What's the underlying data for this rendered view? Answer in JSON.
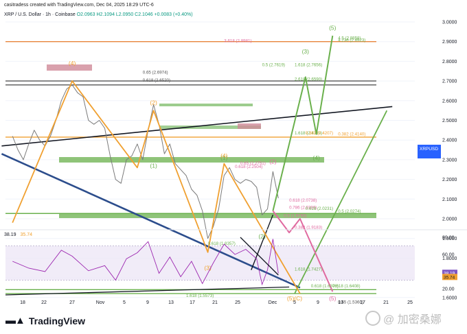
{
  "header": {
    "created": "casitradess created with TradingView.com, Dec 04, 2025 18:29 UTC-6",
    "symbol": "XRP / U.S. Dollar · 1h · Coinbase",
    "ohlc": "O2.0963 H2.1094 L2.0950 C2.1046 +0.0083 (+0.40%)"
  },
  "rsi_header": {
    "value": "38.19",
    "ma": "35.74"
  },
  "price_tag": {
    "symbol": "XRPUSD",
    "value": "2.1046",
    "timer": "30:10",
    "color": "#2962ff"
  },
  "colors": {
    "orange": "#f0a030",
    "green": "#6ab04c",
    "pink": "#e06aa0",
    "navy": "#2c4d8c",
    "black": "#131722",
    "rsi": "#9c27b0"
  },
  "chart_data": {
    "type": "line",
    "instrument": "XRP / U.S. Dollar",
    "timeframe": "1h",
    "y_ticks": [
      3.0,
      2.9,
      2.8,
      2.7,
      2.6,
      2.5,
      2.4,
      2.3,
      2.2,
      2.1,
      2.0,
      1.9,
      1.8,
      1.7,
      1.6
    ],
    "y_tick_labels": [
      "3.0000",
      "2.9000",
      "2.8000",
      "2.7000",
      "2.6000",
      "2.5000",
      "2.4000",
      "2.3000",
      "2.2000",
      "2.1000",
      "2.0000",
      "1.9000",
      "1.8000",
      "1.7000",
      "1.6000"
    ],
    "x_ticks": [
      "18",
      "22",
      "27",
      "Nov",
      "5",
      "9",
      "13",
      "17",
      "21",
      "25",
      "Dec",
      "5",
      "9",
      "13",
      "17",
      "21",
      "25"
    ],
    "price_path": [
      {
        "d": "Oct 16",
        "p": 2.42
      },
      {
        "d": "Oct 17",
        "p": 2.35
      },
      {
        "d": "Oct 18",
        "p": 2.3
      },
      {
        "d": "Oct 19",
        "p": 2.38
      },
      {
        "d": "Oct 20",
        "p": 2.45
      },
      {
        "d": "Oct 21",
        "p": 2.4
      },
      {
        "d": "Oct 22",
        "p": 2.37
      },
      {
        "d": "Oct 23",
        "p": 2.42
      },
      {
        "d": "Oct 24",
        "p": 2.5
      },
      {
        "d": "Oct 25",
        "p": 2.6
      },
      {
        "d": "Oct 26",
        "p": 2.66
      },
      {
        "d": "Oct 27",
        "p": 2.68
      },
      {
        "d": "Oct 28",
        "p": 2.64
      },
      {
        "d": "Oct 29",
        "p": 2.62
      },
      {
        "d": "Oct 30",
        "p": 2.5
      },
      {
        "d": "Oct 31",
        "p": 2.48
      },
      {
        "d": "Nov 1",
        "p": 2.5
      },
      {
        "d": "Nov 2",
        "p": 2.46
      },
      {
        "d": "Nov 3",
        "p": 2.32
      },
      {
        "d": "Nov 4",
        "p": 2.2
      },
      {
        "d": "Nov 5",
        "p": 2.18
      },
      {
        "d": "Nov 6",
        "p": 2.3
      },
      {
        "d": "Nov 7",
        "p": 2.32
      },
      {
        "d": "Nov 8",
        "p": 2.38
      },
      {
        "d": "Nov 9",
        "p": 2.3
      },
      {
        "d": "Nov 10",
        "p": 2.45
      },
      {
        "d": "Nov 11",
        "p": 2.58
      },
      {
        "d": "Nov 12",
        "p": 2.48
      },
      {
        "d": "Nov 13",
        "p": 2.33
      },
      {
        "d": "Nov 14",
        "p": 2.38
      },
      {
        "d": "Nov 15",
        "p": 2.28
      },
      {
        "d": "Nov 16",
        "p": 2.25
      },
      {
        "d": "Nov 17",
        "p": 2.22
      },
      {
        "d": "Nov 18",
        "p": 2.15
      },
      {
        "d": "Nov 19",
        "p": 2.12
      },
      {
        "d": "Nov 20",
        "p": 2.04
      },
      {
        "d": "Nov 21",
        "p": 1.9
      },
      {
        "d": "Nov 22",
        "p": 1.96
      },
      {
        "d": "Nov 23",
        "p": 2.05
      },
      {
        "d": "Nov 24",
        "p": 2.22
      },
      {
        "d": "Nov 25",
        "p": 2.26
      },
      {
        "d": "Nov 26",
        "p": 2.2
      },
      {
        "d": "Nov 27",
        "p": 2.18
      },
      {
        "d": "Nov 28",
        "p": 2.2
      },
      {
        "d": "Nov 29",
        "p": 2.19
      },
      {
        "d": "Nov 30",
        "p": 2.16
      },
      {
        "d": "Dec 1",
        "p": 2.02
      },
      {
        "d": "Dec 2",
        "p": 2.05
      },
      {
        "d": "Dec 3",
        "p": 2.24
      },
      {
        "d": "Dec 4",
        "p": 2.1046
      }
    ],
    "rsi": {
      "value": 38.19,
      "ma": 35.74,
      "ylim": [
        20,
        80
      ],
      "y_tick_labels": [
        "80.00",
        "60.00",
        "40.00",
        "20.00"
      ],
      "y_ticks": [
        80,
        60,
        40,
        20
      ],
      "series": [
        {
          "d": "Oct 16",
          "v": 52
        },
        {
          "d": "Oct 19",
          "v": 44
        },
        {
          "d": "Oct 22",
          "v": 40
        },
        {
          "d": "Oct 25",
          "v": 65
        },
        {
          "d": "Oct 27",
          "v": 58
        },
        {
          "d": "Oct 30",
          "v": 41
        },
        {
          "d": "Nov 2",
          "v": 47
        },
        {
          "d": "Nov 4",
          "v": 30
        },
        {
          "d": "Nov 6",
          "v": 55
        },
        {
          "d": "Nov 8",
          "v": 62
        },
        {
          "d": "Nov 10",
          "v": 75
        },
        {
          "d": "Nov 12",
          "v": 38
        },
        {
          "d": "Nov 14",
          "v": 57
        },
        {
          "d": "Nov 16",
          "v": 34
        },
        {
          "d": "Nov 18",
          "v": 52
        },
        {
          "d": "Nov 20",
          "v": 26
        },
        {
          "d": "Nov 22",
          "v": 50
        },
        {
          "d": "Nov 24",
          "v": 72
        },
        {
          "d": "Nov 26",
          "v": 60
        },
        {
          "d": "Nov 28",
          "v": 66
        },
        {
          "d": "Nov 30",
          "v": 55
        },
        {
          "d": "Dec 1",
          "v": 25
        },
        {
          "d": "Dec 2",
          "v": 42
        },
        {
          "d": "Dec 3",
          "v": 78
        },
        {
          "d": "Dec 4",
          "v": 38
        }
      ]
    },
    "horizontal_levels": [
      {
        "price": 2.9,
        "color": "#e8843a",
        "label": ""
      },
      {
        "price": 2.7,
        "color": "#555555",
        "label": ""
      },
      {
        "price": 2.68,
        "color": "#555555",
        "label": ""
      },
      {
        "price": 2.415,
        "color": "#f0a030",
        "label": "0.382 (2.4140)"
      },
      {
        "price": 2.027,
        "color": "#6ab04c",
        "label": "0.5 (2.0274)"
      },
      {
        "price": 1.64,
        "color": "#6ab04c",
        "label": "0.618 (1.6408)"
      },
      {
        "price": 1.62,
        "color": "#6ab04c",
        "label": ""
      }
    ],
    "fib_labels": [
      {
        "d": "Nov 24",
        "p": 2.897,
        "text": "3.618 (2.8981)",
        "color": "#e06aa0"
      },
      {
        "d": "Dec 15",
        "p": 2.9,
        "text": "4.236 (2.8923)",
        "color": "#6ab04c"
      },
      {
        "d": "Dec 15",
        "p": 2.912,
        "text": "4.5 (2.8858)",
        "color": "#6ab04c"
      },
      {
        "d": "Nov 9",
        "p": 2.737,
        "text": "0.65 (2.6974)",
        "color": "#555555"
      },
      {
        "d": "Nov 9",
        "p": 2.697,
        "text": "0.618 (2.6520)",
        "color": "#555555"
      },
      {
        "d": "Dec 1",
        "p": 2.775,
        "text": "0.5 (2.7619)",
        "color": "#6ab04c"
      },
      {
        "d": "Dec 7",
        "p": 2.775,
        "text": "1.618 (2.7656)",
        "color": "#6ab04c"
      },
      {
        "d": "Dec 7",
        "p": 2.702,
        "text": "2.618 (2.6590)",
        "color": "#6ab04c"
      },
      {
        "d": "Dec 7",
        "p": 2.428,
        "text": "1.618 (2.4339)",
        "color": "#6ab04c"
      },
      {
        "d": "Dec 9",
        "p": 2.428,
        "text": "0.382 (2.4207)",
        "color": "#f0a030"
      },
      {
        "d": "Dec 15",
        "p": 2.424,
        "text": "0.382 (2.4140)",
        "color": "#f0a030"
      },
      {
        "d": "Nov 27",
        "p": 2.275,
        "text": "0.65 (2.2751)",
        "color": "#e06aa0"
      },
      {
        "d": "Nov 26",
        "p": 2.258,
        "text": "0.618 (2.2504)",
        "color": "#e06aa0"
      },
      {
        "d": "Dec 6",
        "p": 2.087,
        "text": "0.618 (2.0738)",
        "color": "#e06aa0"
      },
      {
        "d": "Dec 6",
        "p": 2.05,
        "text": "0.786 (2.0386)",
        "color": "#e06aa0"
      },
      {
        "d": "Dec 9",
        "p": 2.045,
        "text": "0.618 (2.0231)",
        "color": "#6ab04c"
      },
      {
        "d": "Dec 15",
        "p": 2.031,
        "text": "0.5 (2.0274)",
        "color": "#6ab04c"
      },
      {
        "d": "Dec 5",
        "p": 2.009,
        "text": "0.5 (1.9793)",
        "color": "#e06aa0"
      },
      {
        "d": "Dec 7",
        "p": 1.949,
        "text": "0.382 (1.9183)",
        "color": "#e06aa0"
      },
      {
        "d": "Nov 21",
        "p": 1.867,
        "text": "0.618 (1.8357)",
        "color": "#6ab04c"
      },
      {
        "d": "Dec 7",
        "p": 1.737,
        "text": "1.618 (1.7427)",
        "color": "#6ab04c"
      },
      {
        "d": "Dec 10",
        "p": 1.652,
        "text": "0.618 (1.6376)",
        "color": "#6ab04c"
      },
      {
        "d": "Dec 14",
        "p": 1.652,
        "text": "0.618 (1.6408)",
        "color": "#6ab04c"
      },
      {
        "d": "Nov 17",
        "p": 1.603,
        "text": "1.618 (1.5573)",
        "color": "#6ab04c"
      },
      {
        "d": "Dec 15",
        "p": 1.57,
        "text": "0.65 (1.5360)",
        "color": "#555555"
      }
    ],
    "wave_labels": [
      {
        "d": "Oct 27",
        "p": 2.78,
        "text": "(4)",
        "color": "#f0a030"
      },
      {
        "d": "Nov 11",
        "p": 2.58,
        "text": "(2)",
        "color": "#f0a030"
      },
      {
        "d": "Nov 11",
        "p": 2.26,
        "text": "(1)",
        "color": "#6ab04c"
      },
      {
        "d": "Nov 24",
        "p": 2.3,
        "text": "(1)",
        "color": "#6ab04c"
      },
      {
        "d": "Nov 24",
        "p": 2.31,
        "text": "(4)",
        "color": "#f0a030"
      },
      {
        "d": "Nov 21",
        "p": 1.74,
        "text": "(3)",
        "color": "#f0a030"
      },
      {
        "d": "Dec 1",
        "p": 1.9,
        "text": "(2)",
        "color": "#6ab04c"
      },
      {
        "d": "Dec 3",
        "p": 2.28,
        "text": "(2)",
        "color": "#e06aa0"
      },
      {
        "d": "Dec 14",
        "p": 2.96,
        "text": "(5)",
        "color": "#6ab04c"
      },
      {
        "d": "Dec 11",
        "p": 2.3,
        "text": "(4)",
        "color": "#6ab04c"
      },
      {
        "d": "Dec 9",
        "p": 2.84,
        "text": "(3)",
        "color": "#6ab04c"
      },
      {
        "d": "Dec 7",
        "p": 1.585,
        "text": "(5)(C)",
        "color": "#f0a030"
      },
      {
        "d": "Dec 14",
        "p": 1.585,
        "text": "(5)",
        "color": "#e06aa0"
      }
    ],
    "projections": {
      "orange_wave": [
        {
          "d": "Oct 16",
          "p": 1.98
        },
        {
          "d": "Oct 27",
          "p": 2.7
        },
        {
          "d": "Nov 8",
          "p": 2.26
        },
        {
          "d": "Nov 11",
          "p": 2.55
        },
        {
          "d": "Nov 21",
          "p": 1.83
        },
        {
          "d": "Nov 24",
          "p": 2.28
        },
        {
          "d": "Dec 8",
          "p": 1.62
        }
      ],
      "green_wave": [
        {
          "d": "Dec 3",
          "p": 2.04
        },
        {
          "d": "Dec 9",
          "p": 2.72
        },
        {
          "d": "Dec 11",
          "p": 2.43
        },
        {
          "d": "Dec 14",
          "p": 2.93
        }
      ],
      "pink_wave": [
        {
          "d": "Dec 3",
          "p": 2.04
        },
        {
          "d": "Dec 6",
          "p": 1.93
        },
        {
          "d": "Dec 8",
          "p": 2.0
        },
        {
          "d": "Dec 14",
          "p": 1.63
        }
      ],
      "green_line": [
        {
          "d": "Dec 7",
          "p": 1.62
        },
        {
          "d": "Dec 24",
          "p": 2.55
        }
      ],
      "navy_trend": [
        {
          "d": "Oct 14",
          "p": 2.33
        },
        {
          "d": "Dec 8",
          "p": 1.65
        }
      ],
      "black_trend": [
        {
          "d": "Oct 14",
          "p": 2.37
        },
        {
          "d": "Dec 25",
          "p": 2.57
        }
      ],
      "black_arrow": [
        {
          "d": "Nov 29",
          "p": 1.74
        },
        {
          "d": "Dec 3",
          "p": 2.02
        }
      ]
    }
  }
}
